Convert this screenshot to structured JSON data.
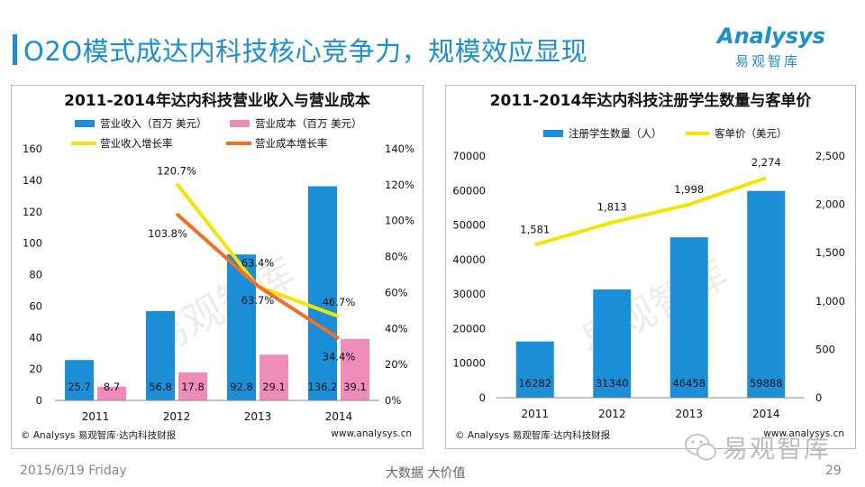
{
  "page": {
    "title": "O2O模式成达内科技核心竞争力，规模效应显现",
    "logo_word": "Analysys",
    "logo_cn": "易观智库",
    "footer_date": "2015/6/19 Friday",
    "footer_mid": "大数据  大价值",
    "footer_page": "29",
    "wechat_text": "易观智库",
    "watermark": "易观智库"
  },
  "colors": {
    "accent": "#1a8fd8",
    "bar_blue": "#1a8fd8",
    "bar_pink": "#f08cba",
    "line_yellow": "#f5e400",
    "line_orange": "#f36f21"
  },
  "chart_data": [
    {
      "type": "bar",
      "title": "2011-2014年达内科技营业收入与营业成本",
      "categories": [
        "2011",
        "2012",
        "2013",
        "2014"
      ],
      "series": [
        {
          "name": "营业收入（百万 美元）",
          "kind": "bar",
          "axis": "left",
          "values": [
            25.7,
            56.8,
            92.8,
            136.2
          ],
          "labels": [
            "25.7",
            "56.8",
            "92.8",
            "136.2"
          ]
        },
        {
          "name": "营业成本（百万 美元）",
          "kind": "bar",
          "axis": "left",
          "values": [
            8.7,
            17.8,
            29.1,
            39.1
          ],
          "labels": [
            "8.7",
            "17.8",
            "29.1",
            "39.1"
          ]
        },
        {
          "name": "营业收入增长率",
          "kind": "line",
          "axis": "right",
          "values": [
            null,
            120.7,
            63.4,
            46.7
          ],
          "labels": [
            "",
            "120.7%",
            "63.4%",
            "46.7%"
          ]
        },
        {
          "name": "营业成本增长率",
          "kind": "line",
          "axis": "right",
          "values": [
            null,
            103.8,
            63.7,
            34.4
          ],
          "labels": [
            "",
            "103.8%",
            "63.7%",
            "34.4%"
          ]
        }
      ],
      "ylim_left": [
        0,
        160
      ],
      "yticks_left": [
        "0",
        "20",
        "40",
        "60",
        "80",
        "100",
        "120",
        "140",
        "160"
      ],
      "ylim_right": [
        0,
        140
      ],
      "yticks_right": [
        "0%",
        "20%",
        "40%",
        "60%",
        "80%",
        "100%",
        "120%",
        "140%"
      ],
      "source": "© Analysys 易观智库·达内科技财报",
      "site": "www.analysys.cn"
    },
    {
      "type": "bar",
      "title": "2011-2014年达内科技注册学生数量与客单价",
      "categories": [
        "2011",
        "2012",
        "2013",
        "2014"
      ],
      "series": [
        {
          "name": "注册学生数量（人）",
          "kind": "bar",
          "axis": "left",
          "values": [
            16282,
            31340,
            46458,
            59888
          ],
          "labels": [
            "16282",
            "31340",
            "46458",
            "59888"
          ]
        },
        {
          "name": "客单价（美元）",
          "kind": "line",
          "axis": "right",
          "values": [
            1581,
            1813,
            1998,
            2274
          ],
          "labels": [
            "1,581",
            "1,813",
            "1,998",
            "2,274"
          ]
        }
      ],
      "ylim_left": [
        0,
        70000
      ],
      "yticks_left": [
        "0",
        "10000",
        "20000",
        "30000",
        "40000",
        "50000",
        "60000",
        "70000"
      ],
      "ylim_right": [
        0,
        2500
      ],
      "yticks_right": [
        "0",
        "500",
        "1,000",
        "1,500",
        "2,000",
        "2,500"
      ],
      "source": "© Analysys 易观智库·达内科技财报",
      "site": "www.analysys.cn"
    }
  ]
}
